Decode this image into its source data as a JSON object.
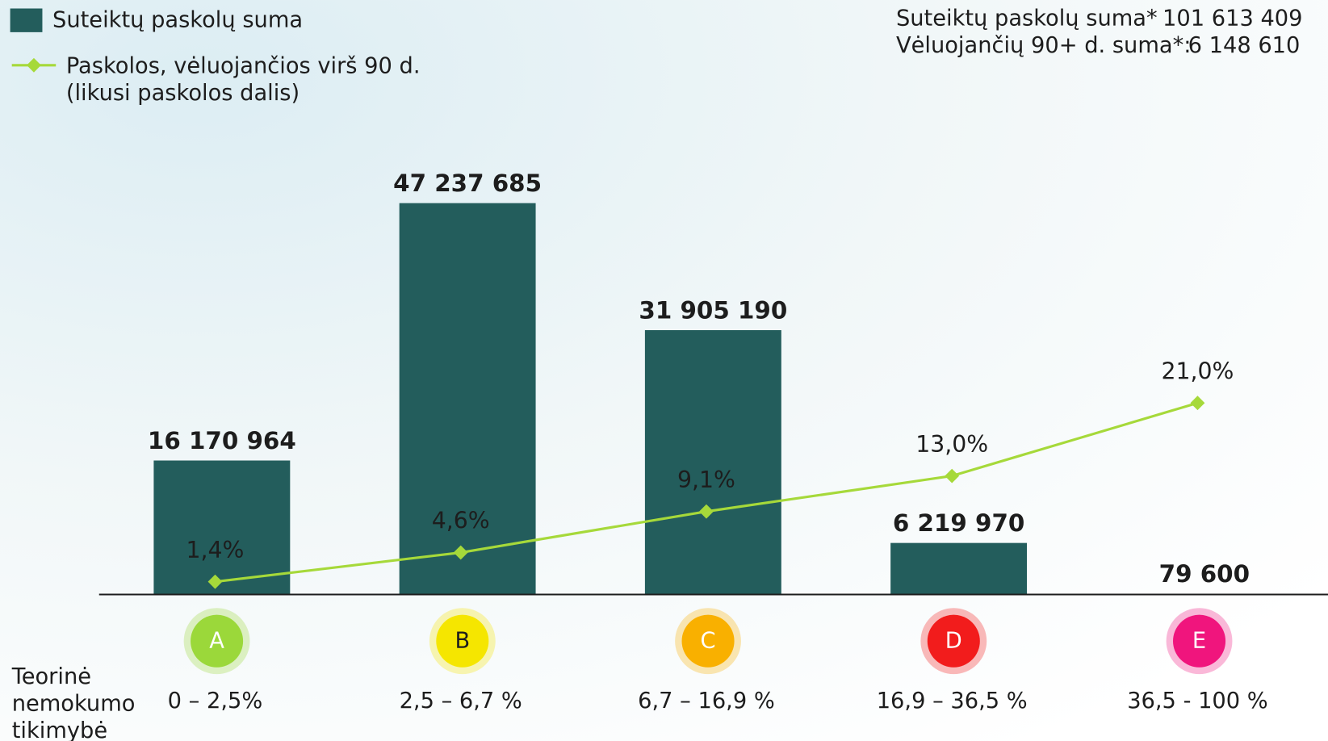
{
  "chart_data": {
    "type": "bar-line",
    "categories": [
      "A",
      "B",
      "C",
      "D",
      "E"
    ],
    "category_colors": [
      "#9bd83a",
      "#f5e600",
      "#f9b000",
      "#f21c1c",
      "#f0157d"
    ],
    "category_ranges": [
      "0 – 2,5%",
      "2,5 – 6,7 %",
      "6,7 – 16,9 %",
      "16,9 – 36,5 %",
      "36,5 - 100 %"
    ],
    "range_axis_label": [
      "Teorinė",
      "nemokumo",
      "tikimybė"
    ],
    "ylim": [
      0,
      60000000
    ],
    "y2lim": [
      0,
      54.5
    ],
    "series": [
      {
        "name": "Suteiktų paskolų suma",
        "color": "#235d5c",
        "type": "bar",
        "values": [
          16170964,
          47237685,
          31905190,
          6219970,
          79600
        ],
        "value_labels": [
          "16 170 964",
          "47 237 685",
          "31 905 190",
          "6 219 970",
          "79 600"
        ]
      },
      {
        "name": "Paskolos, vėluojančios virš 90 d.",
        "name_detail": "(likusi paskolos dalis)",
        "color": "#a6d93a",
        "type": "line",
        "axis": "y2",
        "values": [
          1.4,
          4.6,
          9.1,
          13.0,
          21.0
        ],
        "value_labels": [
          "1,4%",
          "4,6%",
          "9,1%",
          "13,0%",
          "21,0%"
        ]
      }
    ],
    "summary": [
      {
        "label": "Suteiktų paskolų suma*",
        "value": "101 613 409"
      },
      {
        "label": "Vėluojančių 90+ d. suma*:",
        "value": "6 148 610"
      }
    ]
  }
}
